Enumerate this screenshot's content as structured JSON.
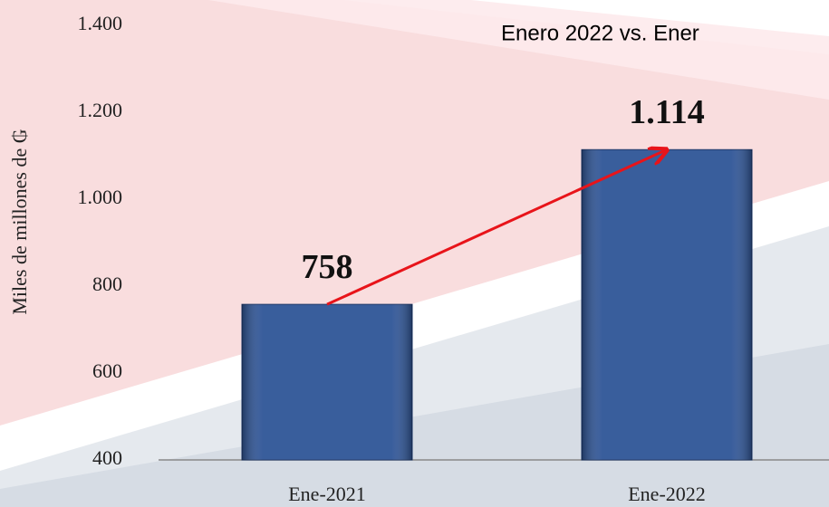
{
  "chart_data": {
    "type": "bar",
    "title": "Enero 2022 vs. Ener",
    "y_label": "Miles de millones de ₲",
    "categories": [
      "Ene-2021",
      "Ene-2022"
    ],
    "values": [
      758,
      1114
    ],
    "value_labels": [
      "758",
      "1.114"
    ],
    "color": "#2f5597",
    "ylim": [
      400,
      1400
    ],
    "yticks": [
      400,
      600,
      800,
      {
        "value": 1000,
        "label": "1.000"
      },
      {
        "value": 1200,
        "label": "1.200"
      },
      {
        "value": 1400,
        "label": "1.400"
      }
    ]
  }
}
